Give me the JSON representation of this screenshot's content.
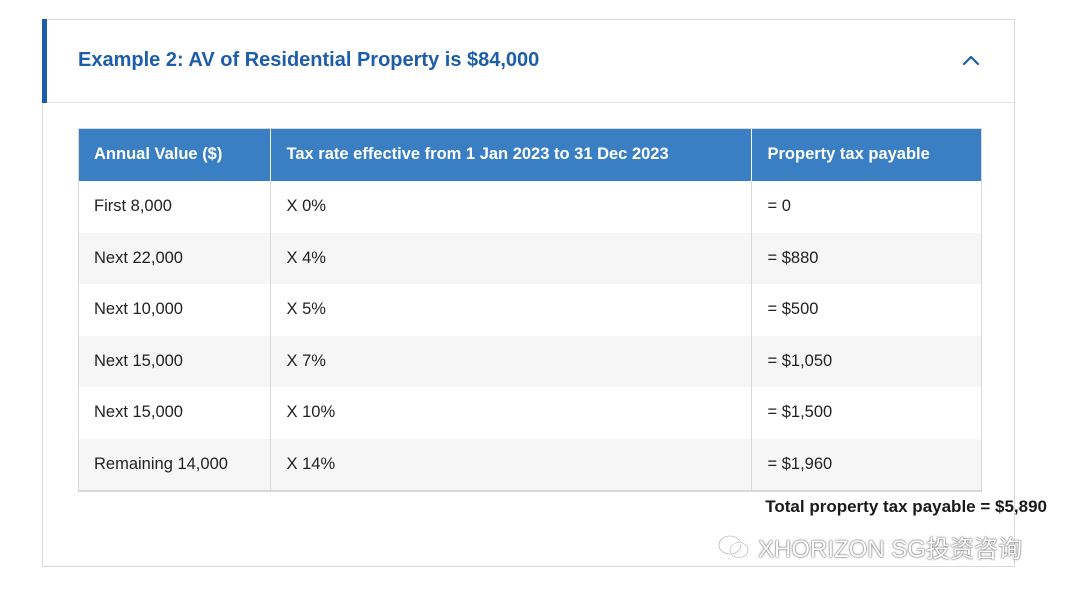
{
  "accordion": {
    "title": "Example 2: AV of Residential Property is $84,000",
    "expanded": true,
    "accent_color": "#1d5da9",
    "toggle_icon": "chevron-up-icon"
  },
  "table": {
    "header_color": "#3a7fc3",
    "headers": [
      "Annual Value ($)",
      "Tax rate effective from 1 Jan 2023 to 31 Dec 2023",
      "Property tax payable"
    ],
    "rows": [
      [
        "First 8,000",
        "X 0%",
        "= 0"
      ],
      [
        "Next 22,000",
        "X 4%",
        "= $880"
      ],
      [
        "Next 10,000",
        "X 5%",
        "= $500"
      ],
      [
        "Next 15,000",
        "X 7%",
        "= $1,050"
      ],
      [
        "Next 15,000",
        "X 10%",
        "= $1,500"
      ],
      [
        "Remaining 14,000",
        "X 14%",
        "= $1,960"
      ]
    ]
  },
  "total": "Total property tax payable = $5,890",
  "watermark": {
    "text": "XHORIZON SG投资咨询",
    "logo_icon": "wechat-logo-icon"
  }
}
